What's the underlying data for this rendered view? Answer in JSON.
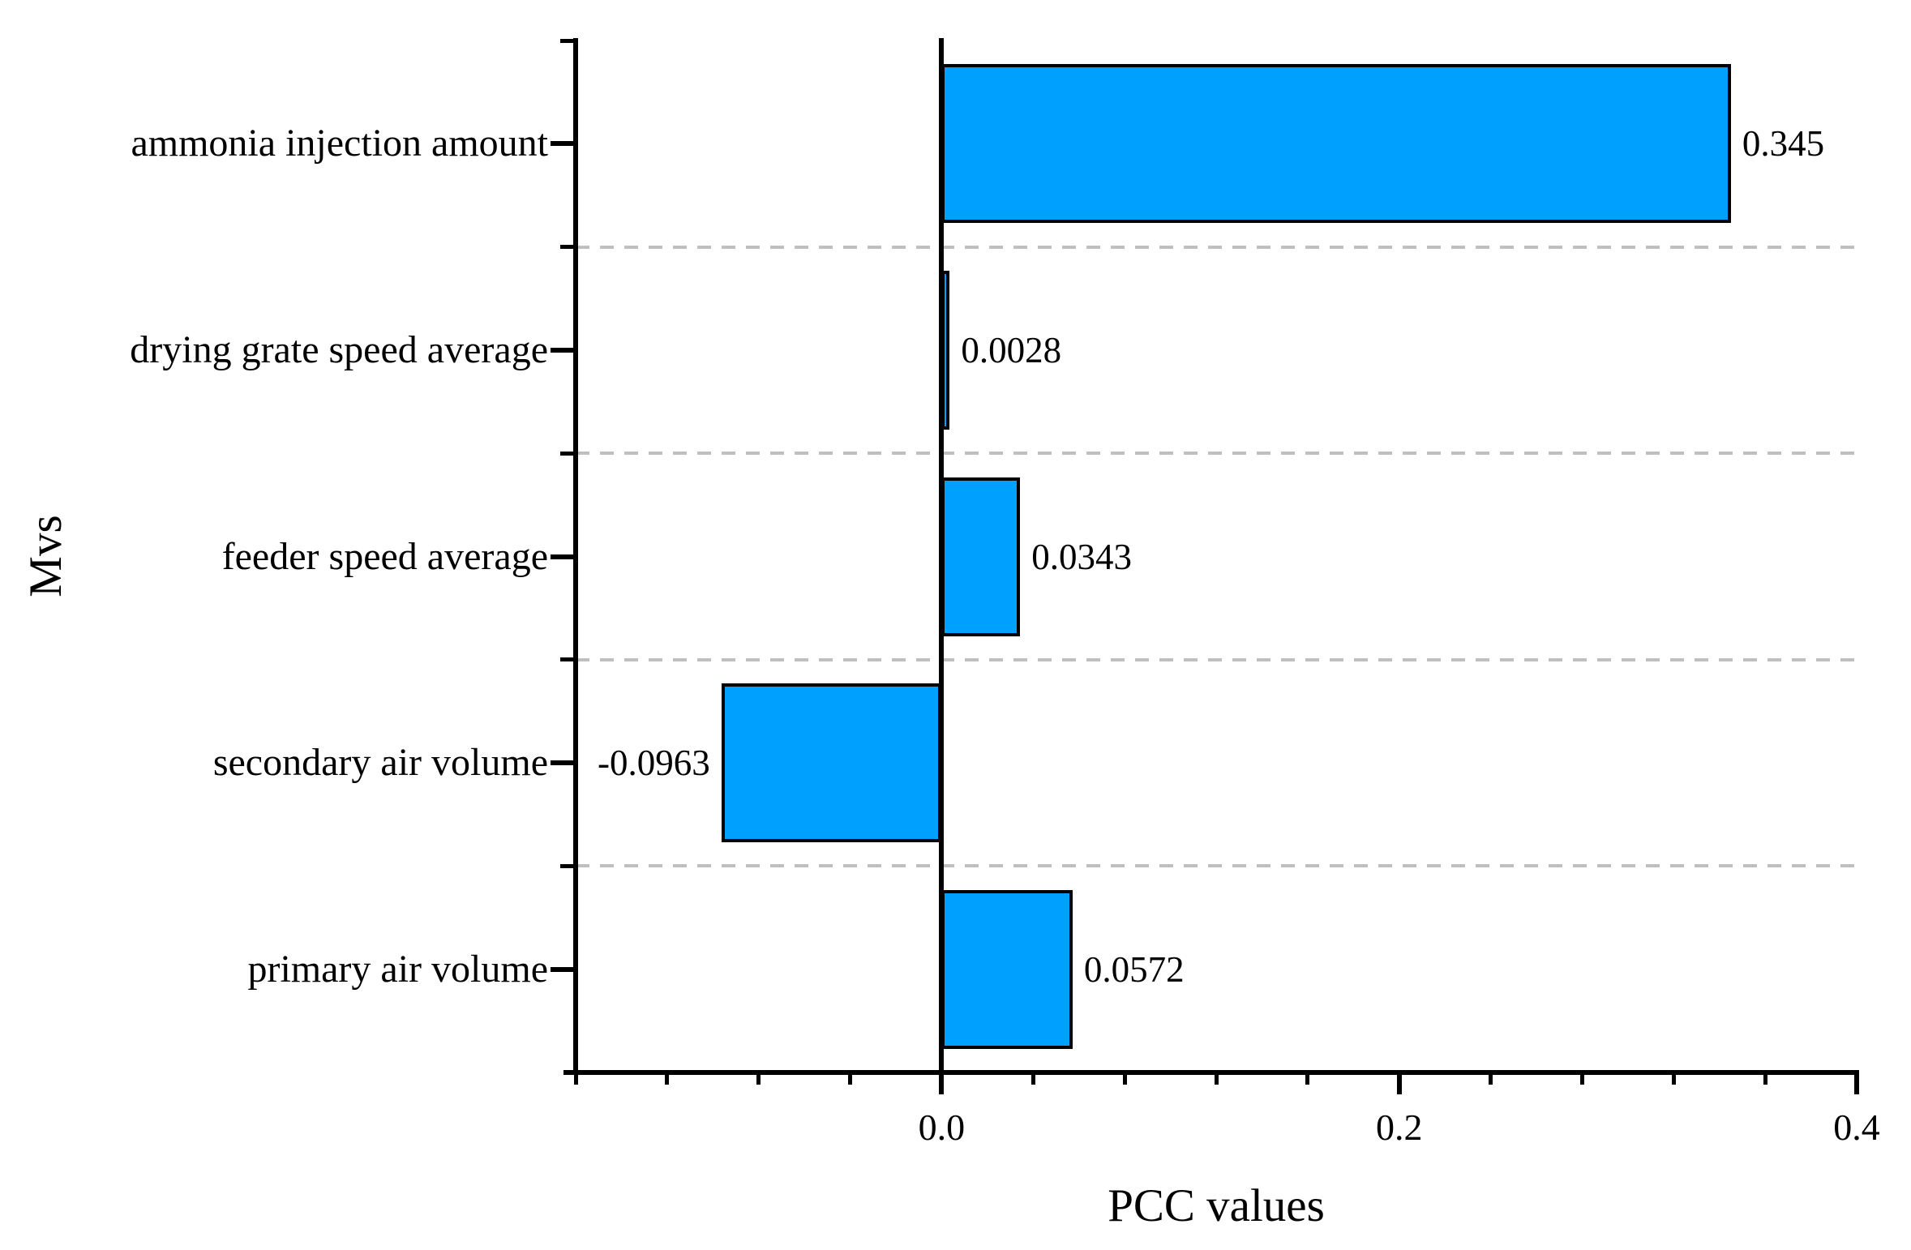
{
  "chart_data": {
    "type": "bar",
    "orientation": "horizontal",
    "categories": [
      "ammonia injection amount",
      "drying grate speed average",
      "feeder speed average",
      "secondary air volume",
      "primary air volume"
    ],
    "values": [
      0.345,
      0.0028,
      0.0343,
      -0.0963,
      0.0572
    ],
    "value_labels": [
      "0.345",
      "0.0028",
      "0.0343",
      "-0.0963",
      "0.0572"
    ],
    "xlabel": "PCC values",
    "ylabel": "Mvs",
    "xlim": [
      -0.16,
      0.4
    ],
    "x_major_ticks": [
      0.0,
      0.2,
      0.4
    ],
    "x_major_tick_labels": [
      "0.0",
      "0.2",
      "0.4"
    ],
    "x_minor_tick_step": 0.04,
    "grid": "horizontal-dashed-between-categories",
    "legend": "none",
    "colors": {
      "bar_fill": "#00A0FF",
      "bar_border": "#000000",
      "axis": "#000000",
      "gridline": "#bfbfbf",
      "text": "#000000",
      "background": "#ffffff"
    }
  }
}
